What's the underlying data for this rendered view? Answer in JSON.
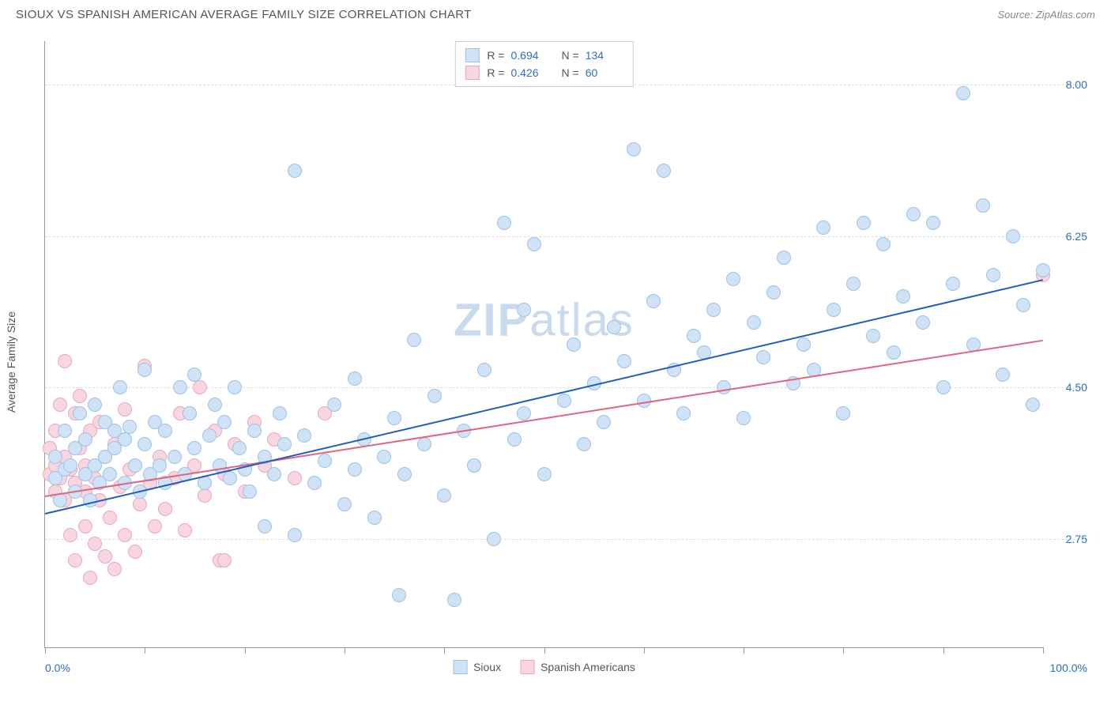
{
  "header": {
    "title": "SIOUX VS SPANISH AMERICAN AVERAGE FAMILY SIZE CORRELATION CHART",
    "source_prefix": "Source: ",
    "source_name": "ZipAtlas.com"
  },
  "chart": {
    "type": "scatter",
    "ylabel": "Average Family Size",
    "xlim": [
      0,
      100
    ],
    "ylim": [
      1.5,
      8.5
    ],
    "yticks": [
      2.75,
      4.5,
      6.25,
      8.0
    ],
    "ytick_labels": [
      "2.75",
      "4.50",
      "6.25",
      "8.00"
    ],
    "xticks": [
      0,
      10,
      20,
      30,
      40,
      50,
      60,
      70,
      80,
      90,
      100
    ],
    "xlabel_start": "0.0%",
    "xlabel_end": "100.0%",
    "background_color": "#ffffff",
    "grid_color": "#dddddd",
    "axis_color": "#999999",
    "marker_radius": 9,
    "marker_border_width": 1,
    "trend_line_width": 2,
    "watermark": "ZIPatlas",
    "watermark_color": "#c9d9ee",
    "series": [
      {
        "name": "Sioux",
        "fill_color": "#cfe2f6",
        "border_color": "#9cc3e8",
        "line_color": "#1f5bbf",
        "r_value": "0.694",
        "n_value": "134",
        "trend": {
          "x1": 0,
          "y1": 3.05,
          "x2": 100,
          "y2": 5.75
        },
        "points": [
          [
            1,
            3.45
          ],
          [
            1,
            3.7
          ],
          [
            1.5,
            3.2
          ],
          [
            2,
            3.55
          ],
          [
            2,
            4.0
          ],
          [
            2.5,
            3.6
          ],
          [
            3,
            3.3
          ],
          [
            3,
            3.8
          ],
          [
            3.5,
            4.2
          ],
          [
            4,
            3.5
          ],
          [
            4,
            3.9
          ],
          [
            4.5,
            3.2
          ],
          [
            5,
            3.6
          ],
          [
            5,
            4.3
          ],
          [
            5.5,
            3.4
          ],
          [
            6,
            3.7
          ],
          [
            6,
            4.1
          ],
          [
            6.5,
            3.5
          ],
          [
            7,
            3.8
          ],
          [
            7,
            4.0
          ],
          [
            7.5,
            4.5
          ],
          [
            8,
            3.4
          ],
          [
            8,
            3.9
          ],
          [
            8.5,
            4.05
          ],
          [
            9,
            3.6
          ],
          [
            9.5,
            3.3
          ],
          [
            10,
            3.85
          ],
          [
            10,
            4.7
          ],
          [
            10.5,
            3.5
          ],
          [
            11,
            4.1
          ],
          [
            11.5,
            3.6
          ],
          [
            12,
            3.4
          ],
          [
            12,
            4.0
          ],
          [
            13,
            3.7
          ],
          [
            13.5,
            4.5
          ],
          [
            14,
            3.5
          ],
          [
            14.5,
            4.2
          ],
          [
            15,
            3.8
          ],
          [
            15,
            4.65
          ],
          [
            16,
            3.4
          ],
          [
            16.5,
            3.95
          ],
          [
            17,
            4.3
          ],
          [
            17.5,
            3.6
          ],
          [
            18,
            4.1
          ],
          [
            18.5,
            3.45
          ],
          [
            19,
            4.5
          ],
          [
            19.5,
            3.8
          ],
          [
            20,
            3.55
          ],
          [
            20.5,
            3.3
          ],
          [
            21,
            4.0
          ],
          [
            22,
            3.7
          ],
          [
            22,
            2.9
          ],
          [
            23,
            3.5
          ],
          [
            23.5,
            4.2
          ],
          [
            24,
            3.85
          ],
          [
            25,
            7.0
          ],
          [
            25,
            2.8
          ],
          [
            26,
            3.95
          ],
          [
            27,
            3.4
          ],
          [
            28,
            3.65
          ],
          [
            29,
            4.3
          ],
          [
            30,
            3.15
          ],
          [
            31,
            4.6
          ],
          [
            31,
            3.55
          ],
          [
            32,
            3.9
          ],
          [
            33,
            3.0
          ],
          [
            34,
            3.7
          ],
          [
            35,
            4.15
          ],
          [
            35.5,
            2.1
          ],
          [
            36,
            3.5
          ],
          [
            37,
            5.05
          ],
          [
            38,
            3.85
          ],
          [
            39,
            4.4
          ],
          [
            40,
            3.25
          ],
          [
            41,
            2.05
          ],
          [
            42,
            4.0
          ],
          [
            43,
            3.6
          ],
          [
            44,
            4.7
          ],
          [
            45,
            2.75
          ],
          [
            46,
            6.4
          ],
          [
            47,
            3.9
          ],
          [
            48,
            5.4
          ],
          [
            48,
            4.2
          ],
          [
            49,
            6.15
          ],
          [
            50,
            3.5
          ],
          [
            52,
            4.35
          ],
          [
            53,
            5.0
          ],
          [
            54,
            3.85
          ],
          [
            55,
            4.55
          ],
          [
            56,
            4.1
          ],
          [
            57,
            5.2
          ],
          [
            58,
            4.8
          ],
          [
            59,
            7.25
          ],
          [
            60,
            4.35
          ],
          [
            61,
            5.5
          ],
          [
            62,
            7.0
          ],
          [
            63,
            4.7
          ],
          [
            64,
            4.2
          ],
          [
            65,
            5.1
          ],
          [
            66,
            4.9
          ],
          [
            67,
            5.4
          ],
          [
            68,
            4.5
          ],
          [
            69,
            5.75
          ],
          [
            70,
            4.15
          ],
          [
            71,
            5.25
          ],
          [
            72,
            4.85
          ],
          [
            73,
            5.6
          ],
          [
            74,
            6.0
          ],
          [
            75,
            4.55
          ],
          [
            76,
            5.0
          ],
          [
            77,
            4.7
          ],
          [
            78,
            6.35
          ],
          [
            79,
            5.4
          ],
          [
            80,
            4.2
          ],
          [
            81,
            5.7
          ],
          [
            82,
            6.4
          ],
          [
            83,
            5.1
          ],
          [
            84,
            6.15
          ],
          [
            85,
            4.9
          ],
          [
            86,
            5.55
          ],
          [
            87,
            6.5
          ],
          [
            88,
            5.25
          ],
          [
            89,
            6.4
          ],
          [
            90,
            4.5
          ],
          [
            91,
            5.7
          ],
          [
            92,
            7.9
          ],
          [
            93,
            5.0
          ],
          [
            94,
            6.6
          ],
          [
            95,
            5.8
          ],
          [
            96,
            4.65
          ],
          [
            97,
            6.25
          ],
          [
            98,
            5.45
          ],
          [
            99,
            4.3
          ],
          [
            100,
            5.85
          ]
        ]
      },
      {
        "name": "Spanish Americans",
        "fill_color": "#f7d6df",
        "border_color": "#eba7bb",
        "line_color": "#e3647f",
        "r_value": "0.426",
        "n_value": "60",
        "trend": {
          "x1": 0,
          "y1": 3.25,
          "x2": 100,
          "y2": 5.05
        },
        "points": [
          [
            0.5,
            3.5
          ],
          [
            0.5,
            3.8
          ],
          [
            1,
            3.3
          ],
          [
            1,
            4.0
          ],
          [
            1,
            3.6
          ],
          [
            1.5,
            3.45
          ],
          [
            1.5,
            4.3
          ],
          [
            2,
            3.2
          ],
          [
            2,
            3.7
          ],
          [
            2,
            4.8
          ],
          [
            2.5,
            3.55
          ],
          [
            2.5,
            2.8
          ],
          [
            3,
            4.2
          ],
          [
            3,
            3.4
          ],
          [
            3,
            2.5
          ],
          [
            3.5,
            3.8
          ],
          [
            3.5,
            4.4
          ],
          [
            4,
            3.3
          ],
          [
            4,
            2.9
          ],
          [
            4,
            3.6
          ],
          [
            4.5,
            4.0
          ],
          [
            4.5,
            2.3
          ],
          [
            5,
            3.45
          ],
          [
            5,
            2.7
          ],
          [
            5.5,
            4.1
          ],
          [
            5.5,
            3.2
          ],
          [
            6,
            2.55
          ],
          [
            6,
            3.7
          ],
          [
            6.5,
            3.0
          ],
          [
            7,
            3.85
          ],
          [
            7,
            2.4
          ],
          [
            7.5,
            3.35
          ],
          [
            8,
            2.8
          ],
          [
            8,
            4.25
          ],
          [
            8.5,
            3.55
          ],
          [
            9,
            2.6
          ],
          [
            9.5,
            3.15
          ],
          [
            10,
            4.75
          ],
          [
            10.5,
            3.4
          ],
          [
            11,
            2.9
          ],
          [
            11.5,
            3.7
          ],
          [
            12,
            3.1
          ],
          [
            13,
            3.45
          ],
          [
            13.5,
            4.2
          ],
          [
            14,
            2.85
          ],
          [
            15,
            3.6
          ],
          [
            15.5,
            4.5
          ],
          [
            16,
            3.25
          ],
          [
            17,
            4.0
          ],
          [
            17.5,
            2.5
          ],
          [
            18,
            3.5
          ],
          [
            18,
            2.5
          ],
          [
            19,
            3.85
          ],
          [
            20,
            3.3
          ],
          [
            21,
            4.1
          ],
          [
            22,
            3.6
          ],
          [
            23,
            3.9
          ],
          [
            25,
            3.45
          ],
          [
            28,
            4.2
          ],
          [
            100,
            5.8
          ]
        ]
      }
    ]
  }
}
